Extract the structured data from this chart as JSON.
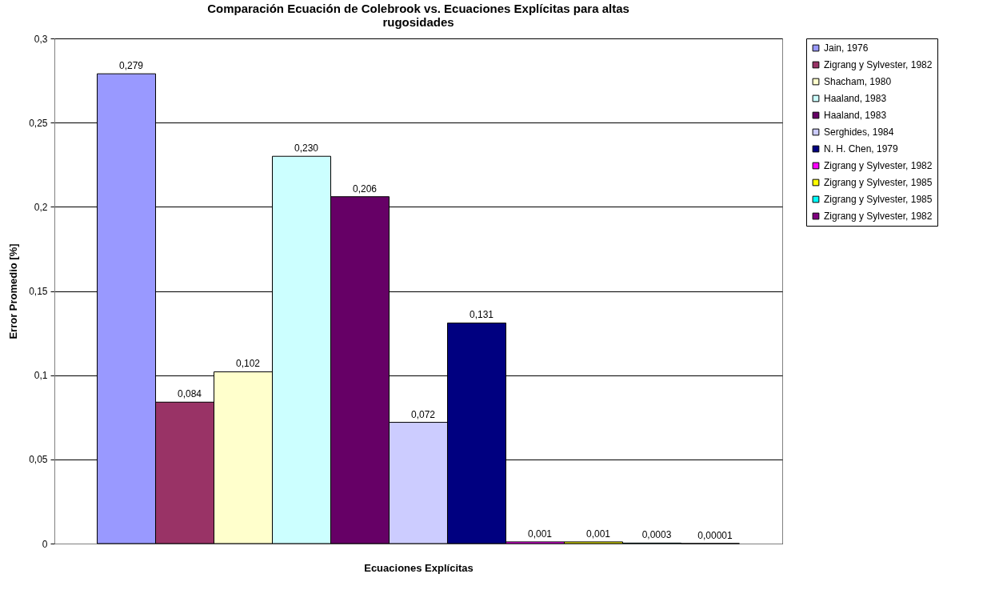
{
  "chart_data": {
    "type": "bar",
    "title": "Comparación Ecuación de Colebrook vs. Ecuaciones Explícitas para altas rugosidades",
    "xlabel": "Ecuaciones Explícitas",
    "ylabel": "Error Promedio [%]",
    "categories": [
      null
    ],
    "series": [
      {
        "name": "Jain, 1976",
        "color": "#9999ff",
        "values": [
          0.279
        ],
        "value_labels": [
          "0,279"
        ]
      },
      {
        "name": "Zigrang y Sylvester, 1982",
        "color": "#993366",
        "values": [
          0.084
        ],
        "value_labels": [
          "0,084"
        ]
      },
      {
        "name": "Shacham, 1980",
        "color": "#ffffcc",
        "values": [
          0.102
        ],
        "value_labels": [
          "0,102"
        ]
      },
      {
        "name": "Haaland, 1983",
        "color": "#ccffff",
        "values": [
          0.23
        ],
        "value_labels": [
          "0,230"
        ]
      },
      {
        "name": "Haaland, 1983",
        "color": "#660066",
        "values": [
          0.206
        ],
        "value_labels": [
          "0,206"
        ]
      },
      {
        "name": "Serghides, 1984",
        "color": "#ccccff",
        "values": [
          0.072
        ],
        "value_labels": [
          "0,072"
        ]
      },
      {
        "name": "N. H. Chen, 1979",
        "color": "#000080",
        "values": [
          0.131
        ],
        "value_labels": [
          "0,131"
        ]
      },
      {
        "name": "Zigrang y Sylvester, 1982",
        "color": "#ff00ff",
        "values": [
          0.001
        ],
        "value_labels": [
          "0,001"
        ]
      },
      {
        "name": "Zigrang y Sylvester, 1985",
        "color": "#ffff00",
        "values": [
          0.001
        ],
        "value_labels": [
          "0,001"
        ]
      },
      {
        "name": "Zigrang y Sylvester, 1985",
        "color": "#00ffff",
        "values": [
          0.0003
        ],
        "value_labels": [
          "0,0003"
        ]
      },
      {
        "name": "Zigrang y Sylvester, 1982",
        "color": "#800080",
        "values": [
          1e-05
        ],
        "value_labels": [
          "0,00001"
        ]
      }
    ],
    "ylim": [
      0,
      0.3
    ],
    "yticks": [
      {
        "value": 0,
        "label": "0"
      },
      {
        "value": 0.05,
        "label": "0,05"
      },
      {
        "value": 0.1,
        "label": "0,1"
      },
      {
        "value": 0.15,
        "label": "0,15"
      },
      {
        "value": 0.2,
        "label": "0,2"
      },
      {
        "value": 0.25,
        "label": "0,25"
      },
      {
        "value": 0.3,
        "label": "0,3"
      }
    ],
    "grid": "y",
    "legend": "right"
  }
}
